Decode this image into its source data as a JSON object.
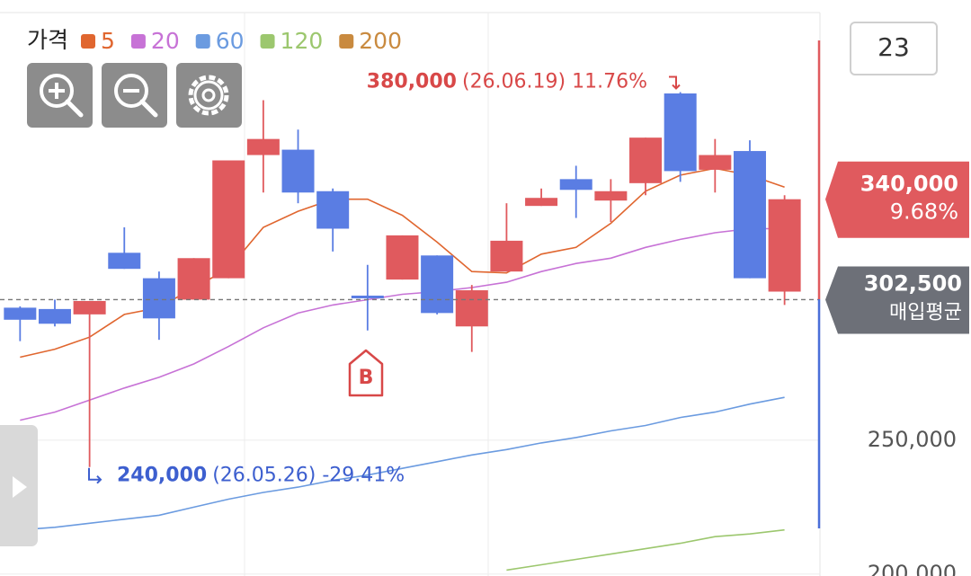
{
  "chart_data": {
    "type": "candlestick",
    "legend_title": "가격",
    "categories": [
      null,
      null,
      null,
      null,
      null,
      null,
      null,
      null,
      null,
      null,
      null,
      null,
      null,
      null,
      null,
      null,
      null,
      null,
      null,
      null,
      null,
      null,
      null
    ],
    "open": [
      299500,
      299000,
      297000,
      320000,
      310500,
      302500,
      310500,
      356500,
      358500,
      343000,
      304000,
      310000,
      319000,
      292500,
      313000,
      337500,
      347500,
      339500,
      346000,
      379500,
      351000,
      358000,
      305500
    ],
    "high": [
      300000,
      302500,
      302000,
      329500,
      313000,
      318000,
      354500,
      377000,
      366000,
      344000,
      315500,
      326500,
      319000,
      308000,
      338500,
      344000,
      352500,
      347500,
      363000,
      380000,
      362500,
      362000,
      341500
    ],
    "low": [
      287000,
      292500,
      240000,
      314000,
      287500,
      302500,
      310500,
      342500,
      338500,
      320500,
      291000,
      310000,
      297000,
      283000,
      313000,
      337500,
      333000,
      331500,
      341500,
      346500,
      342500,
      310500,
      300500
    ],
    "close": [
      295000,
      293500,
      302000,
      314000,
      295500,
      318000,
      354500,
      362500,
      342500,
      329000,
      303000,
      326500,
      297500,
      306000,
      324500,
      340500,
      343500,
      343000,
      363000,
      350500,
      356500,
      310500,
      340000
    ],
    "up_color": "#e05a5e",
    "down_color": "#5a7de3",
    "series": [
      {
        "name": "5",
        "color": "#e0662f",
        "values": [
          281000,
          284000,
          288500,
          297000,
          299500,
          307000,
          314000,
          329500,
          335500,
          340000,
          340000,
          334000,
          324000,
          313000,
          312500,
          319500,
          322000,
          331000,
          343000,
          349000,
          351500,
          349000,
          344500
        ]
      },
      {
        "name": "20",
        "color": "#c772d6",
        "values": [
          257500,
          260500,
          265000,
          269500,
          273500,
          278500,
          285000,
          292000,
          297500,
          300500,
          302500,
          304500,
          305500,
          307000,
          309000,
          313000,
          316000,
          318000,
          322000,
          325000,
          327500,
          329000,
          329000
        ]
      },
      {
        "name": "60",
        "color": "#6b9be0",
        "values": [
          216500,
          217500,
          219000,
          220500,
          222000,
          225000,
          228000,
          230500,
          232500,
          235000,
          237000,
          239500,
          242000,
          244500,
          246500,
          249000,
          251000,
          253500,
          255500,
          258500,
          260500,
          263500,
          266000
        ]
      },
      {
        "name": "120",
        "color": "#9cc76e",
        "values": [
          null,
          null,
          null,
          null,
          null,
          null,
          null,
          null,
          null,
          null,
          null,
          null,
          null,
          null,
          201500,
          203500,
          205500,
          207500,
          209500,
          211500,
          214000,
          215000,
          216500
        ]
      },
      {
        "name": "200",
        "color": "#c98a3f",
        "values": [
          null,
          null,
          null,
          null,
          null,
          null,
          null,
          null,
          null,
          null,
          null,
          null,
          null,
          null,
          null,
          null,
          null,
          null,
          null,
          null,
          null,
          null,
          null
        ]
      }
    ],
    "ylim": [
      199300,
      409700
    ],
    "yticks": [
      {
        "value": 200000,
        "label": "200,000"
      },
      {
        "value": 250000,
        "label": "250,000"
      }
    ],
    "period": "23",
    "high_annotation": {
      "price": 380000,
      "price_label": "380,000",
      "detail": "(26.06.19) 11.76%"
    },
    "low_annotation": {
      "price": 240000,
      "price_label": "240,000",
      "detail": "(26.05.26) -29.41%"
    },
    "current_price": {
      "value": 340000,
      "label": "340,000",
      "change": "9.68%"
    },
    "average_price": {
      "value": 302500,
      "label": "302,500",
      "text": "매입평균"
    },
    "buy_marker": "B"
  }
}
